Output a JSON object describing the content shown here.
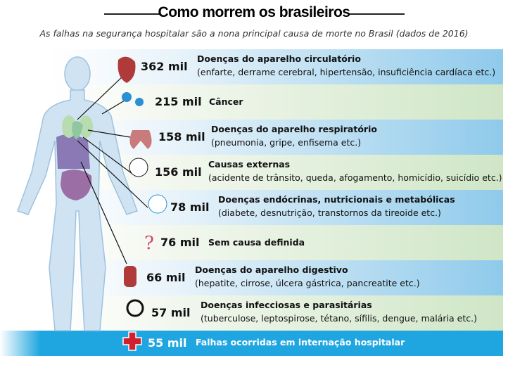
{
  "header": {
    "title": "Como morrem os brasileiros",
    "subtitle": "As falhas na segurança hospitalar são a nona principal causa de morte no Brasil (dados de 2016)"
  },
  "items": [
    {
      "value": "362 mil",
      "label": "Doenças do aparelho circulatório",
      "detail": "(enfarte, derrame cerebral, hipertensão, insuficiência cardíaca etc.)"
    },
    {
      "value": "215 mil",
      "label": "Câncer"
    },
    {
      "value": "158 mil",
      "label": "Doenças do aparelho respiratório",
      "detail": "(pneumonia, gripe, enfisema etc.)"
    },
    {
      "value": "156 mil",
      "label": "Causas externas",
      "detail": "(acidente de trânsito, queda, afogamento, homicídio, suicídio etc.)"
    },
    {
      "value": "78 mil",
      "label": "Doenças endócrinas, nutricionais e metabólicas",
      "detail": "(diabete, desnutrição, transtornos da tireoide etc.)"
    },
    {
      "value": "76 mil",
      "label": "Sem causa definida"
    },
    {
      "value": "66 mil",
      "label": "Doenças do aparelho digestivo",
      "detail": "(hepatite, cirrose, úlcera gástrica, pancreatite etc.)"
    },
    {
      "value": "57 mil",
      "label": "Doenças infecciosas e parasitárias",
      "detail": "(tuberculose, leptospirose, tétano, sífilis, dengue, malária etc.)"
    },
    {
      "value": "55 mil",
      "label": "Falhas ocorridas em internação hospitalar"
    }
  ]
}
